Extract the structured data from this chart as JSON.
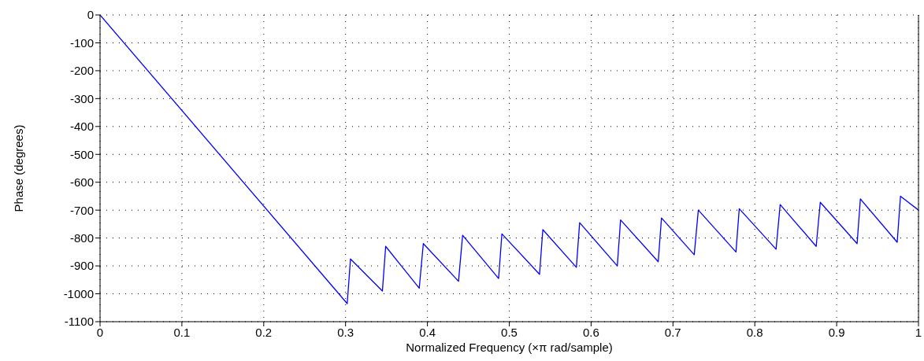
{
  "chart_data": {
    "type": "line",
    "xlabel": "Normalized Frequency  (×π rad/sample)",
    "ylabel": "Phase (degrees)",
    "x": [
      0,
      0.302,
      0.306,
      0.345,
      0.349,
      0.39,
      0.395,
      0.438,
      0.443,
      0.487,
      0.491,
      0.537,
      0.541,
      0.582,
      0.586,
      0.632,
      0.636,
      0.682,
      0.686,
      0.726,
      0.731,
      0.777,
      0.781,
      0.826,
      0.831,
      0.875,
      0.88,
      0.925,
      0.929,
      0.974,
      0.978,
      1
    ],
    "series": [
      {
        "color": "#0000ff",
        "values": [
          0,
          -1035,
          -875,
          -990,
          -830,
          -980,
          -820,
          -955,
          -790,
          -945,
          -785,
          -930,
          -770,
          -905,
          -745,
          -900,
          -735,
          -885,
          -728,
          -860,
          -700,
          -850,
          -695,
          -840,
          -680,
          -830,
          -672,
          -820,
          -660,
          -815,
          -650,
          -700
        ]
      }
    ],
    "xlim": [
      0,
      1
    ],
    "xticks": [
      0,
      0.1,
      0.2,
      0.3,
      0.4,
      0.5,
      0.6,
      0.7,
      0.8,
      0.9,
      1
    ],
    "ylim": [
      -1100,
      0
    ],
    "yticks": [
      -1100,
      -1000,
      -900,
      -800,
      -700,
      -600,
      -500,
      -400,
      -300,
      -200,
      -100,
      0
    ],
    "grid": true,
    "legend": false,
    "marker": "none",
    "line_style": "solid"
  }
}
